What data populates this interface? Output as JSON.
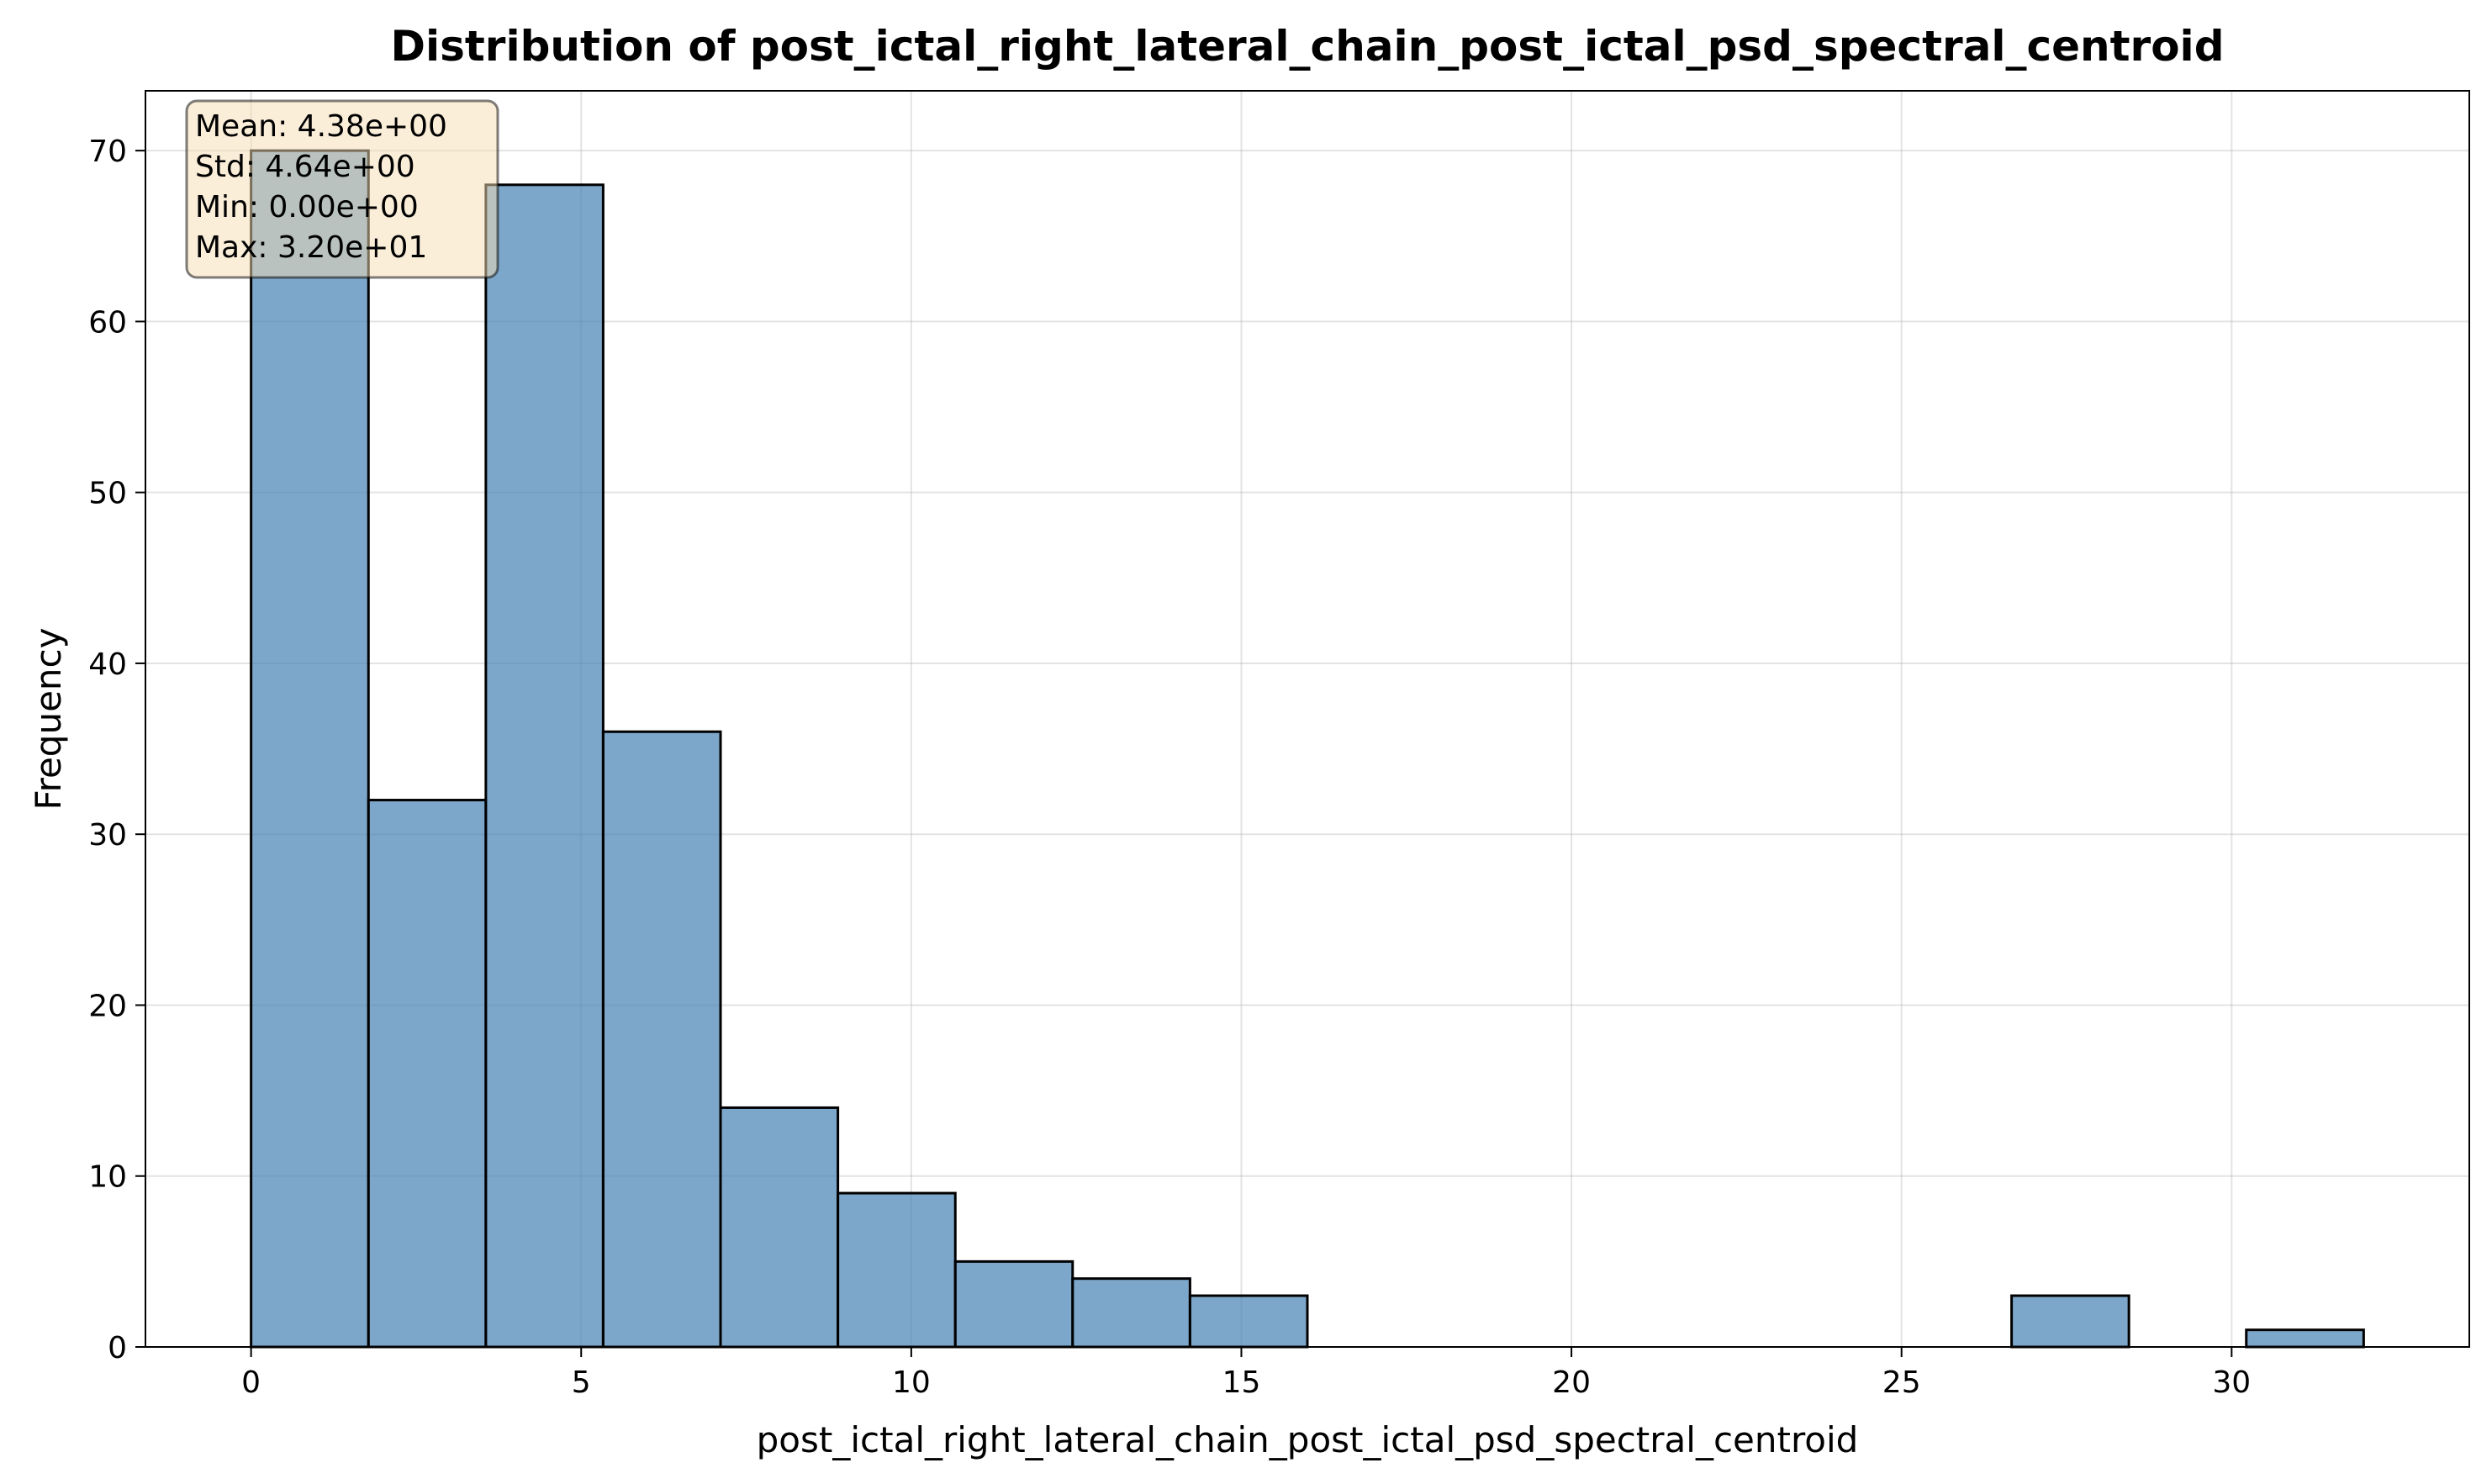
{
  "chart_data": {
    "type": "histogram",
    "title": "Distribution of post_ictal_right_lateral_chain_post_ictal_psd_spectral_centroid",
    "xlabel": "post_ictal_right_lateral_chain_post_ictal_psd_spectral_centroid",
    "ylabel": "Frequency",
    "xlim": [
      -1.6,
      33.6
    ],
    "ylim": [
      0,
      73.5
    ],
    "grid": true,
    "xticks": [
      0,
      5,
      10,
      15,
      20,
      25,
      30
    ],
    "yticks": [
      0,
      10,
      20,
      30,
      40,
      50,
      60,
      70
    ],
    "bin_width": 1.778,
    "bins": [
      {
        "start": 0.0,
        "end": 1.778,
        "count": 70
      },
      {
        "start": 1.778,
        "end": 3.556,
        "count": 32
      },
      {
        "start": 3.556,
        "end": 5.333,
        "count": 68
      },
      {
        "start": 5.333,
        "end": 7.111,
        "count": 36
      },
      {
        "start": 7.111,
        "end": 8.889,
        "count": 14
      },
      {
        "start": 8.889,
        "end": 10.667,
        "count": 9
      },
      {
        "start": 10.667,
        "end": 12.444,
        "count": 5
      },
      {
        "start": 12.444,
        "end": 14.222,
        "count": 4
      },
      {
        "start": 14.222,
        "end": 16.0,
        "count": 3
      },
      {
        "start": 16.0,
        "end": 17.778,
        "count": 0
      },
      {
        "start": 17.778,
        "end": 19.556,
        "count": 0
      },
      {
        "start": 19.556,
        "end": 21.333,
        "count": 0
      },
      {
        "start": 21.333,
        "end": 23.111,
        "count": 0
      },
      {
        "start": 23.111,
        "end": 24.889,
        "count": 0
      },
      {
        "start": 24.889,
        "end": 26.667,
        "count": 0
      },
      {
        "start": 26.667,
        "end": 28.444,
        "count": 3
      },
      {
        "start": 28.444,
        "end": 30.222,
        "count": 0
      },
      {
        "start": 30.222,
        "end": 32.0,
        "count": 1
      }
    ],
    "stats_box": [
      "Mean: 4.38e+00",
      "Std: 4.64e+00",
      "Min: 0.00e+00",
      "Max: 3.20e+01"
    ],
    "colors": {
      "bar_fill": "#4682b4",
      "bar_edge": "#000000",
      "stats_box_fill": "#f5deb3",
      "grid": "#b0b0b0"
    }
  }
}
